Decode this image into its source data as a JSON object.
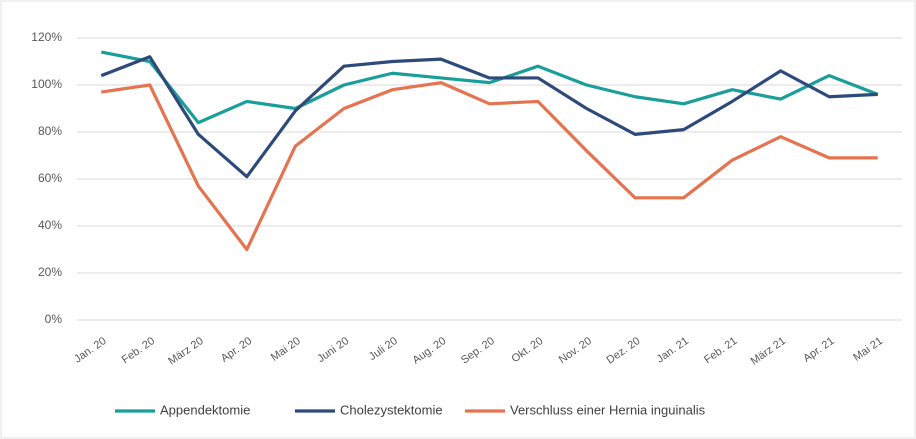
{
  "chart_data": {
    "type": "line",
    "categories": [
      "Jan. 20",
      "Feb. 20",
      "März 20",
      "Apr. 20",
      "Mai 20",
      "Juni 20",
      "Juli 20",
      "Aug. 20",
      "Sep. 20",
      "Okt. 20",
      "Nov. 20",
      "Dez. 20",
      "Jan. 21",
      "Feb. 21",
      "März 21",
      "Apr. 21",
      "Mai 21"
    ],
    "series": [
      {
        "name": "Appendektomie",
        "color": "#1a9e9a",
        "values": [
          114,
          110,
          84,
          93,
          90,
          100,
          105,
          103,
          101,
          108,
          100,
          95,
          92,
          98,
          94,
          104,
          96
        ]
      },
      {
        "name": "Cholezystektomie",
        "color": "#2e4a7a",
        "values": [
          104,
          112,
          79,
          61,
          89,
          108,
          110,
          111,
          103,
          103,
          90,
          79,
          81,
          93,
          106,
          95,
          96
        ]
      },
      {
        "name": "Verschluss einer Hernia inguinalis",
        "color": "#e6734f",
        "values": [
          97,
          100,
          57,
          30,
          74,
          90,
          98,
          101,
          92,
          93,
          72,
          52,
          52,
          68,
          78,
          69,
          69
        ]
      }
    ],
    "ylim": [
      0,
      120
    ],
    "yticks": [
      {
        "value": 0,
        "label": "0%"
      },
      {
        "value": 20,
        "label": "20%"
      },
      {
        "value": 40,
        "label": "40%"
      },
      {
        "value": 60,
        "label": "60%"
      },
      {
        "value": 80,
        "label": "80%"
      },
      {
        "value": 100,
        "label": "100%"
      },
      {
        "value": 120,
        "label": "120%"
      }
    ],
    "grid": true
  }
}
